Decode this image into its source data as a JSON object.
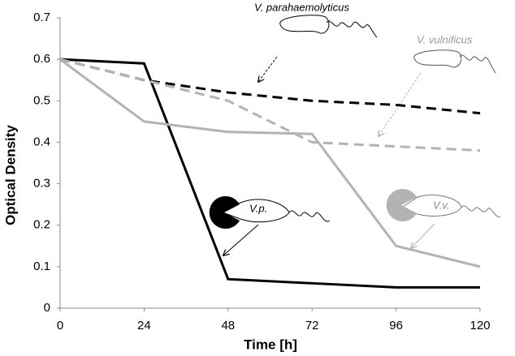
{
  "chart_data": {
    "type": "line",
    "x_label": "Time [h]",
    "y_label": "Optical Density",
    "x": [
      0,
      24,
      48,
      72,
      96,
      120
    ],
    "series": [
      {
        "color": "#000000",
        "dashed": false,
        "values": [
          0.6,
          0.59,
          0.07,
          0.06,
          0.05,
          0.05
        ]
      },
      {
        "color": "#b3b3b3",
        "dashed": false,
        "values": [
          0.6,
          0.45,
          0.425,
          0.42,
          0.15,
          0.1
        ]
      },
      {
        "color": "#000000",
        "dashed": true,
        "values": [
          0.6,
          0.55,
          0.52,
          0.5,
          0.49,
          0.47
        ]
      },
      {
        "color": "#b3b3b3",
        "dashed": true,
        "values": [
          0.6,
          0.55,
          0.5,
          0.4,
          0.39,
          0.38
        ]
      }
    ],
    "annotations": [
      "V. parahaemolyticus",
      "V. vulnificus",
      "V.p.",
      "V.v."
    ],
    "xlim": [
      0,
      120
    ],
    "xticks": [
      0,
      24,
      48,
      72,
      96,
      120
    ],
    "ylim": [
      0,
      0.7
    ],
    "yticks": [
      0,
      0.1,
      0.2,
      0.3,
      0.4,
      0.5,
      0.6,
      0.7
    ],
    "grid": false
  }
}
